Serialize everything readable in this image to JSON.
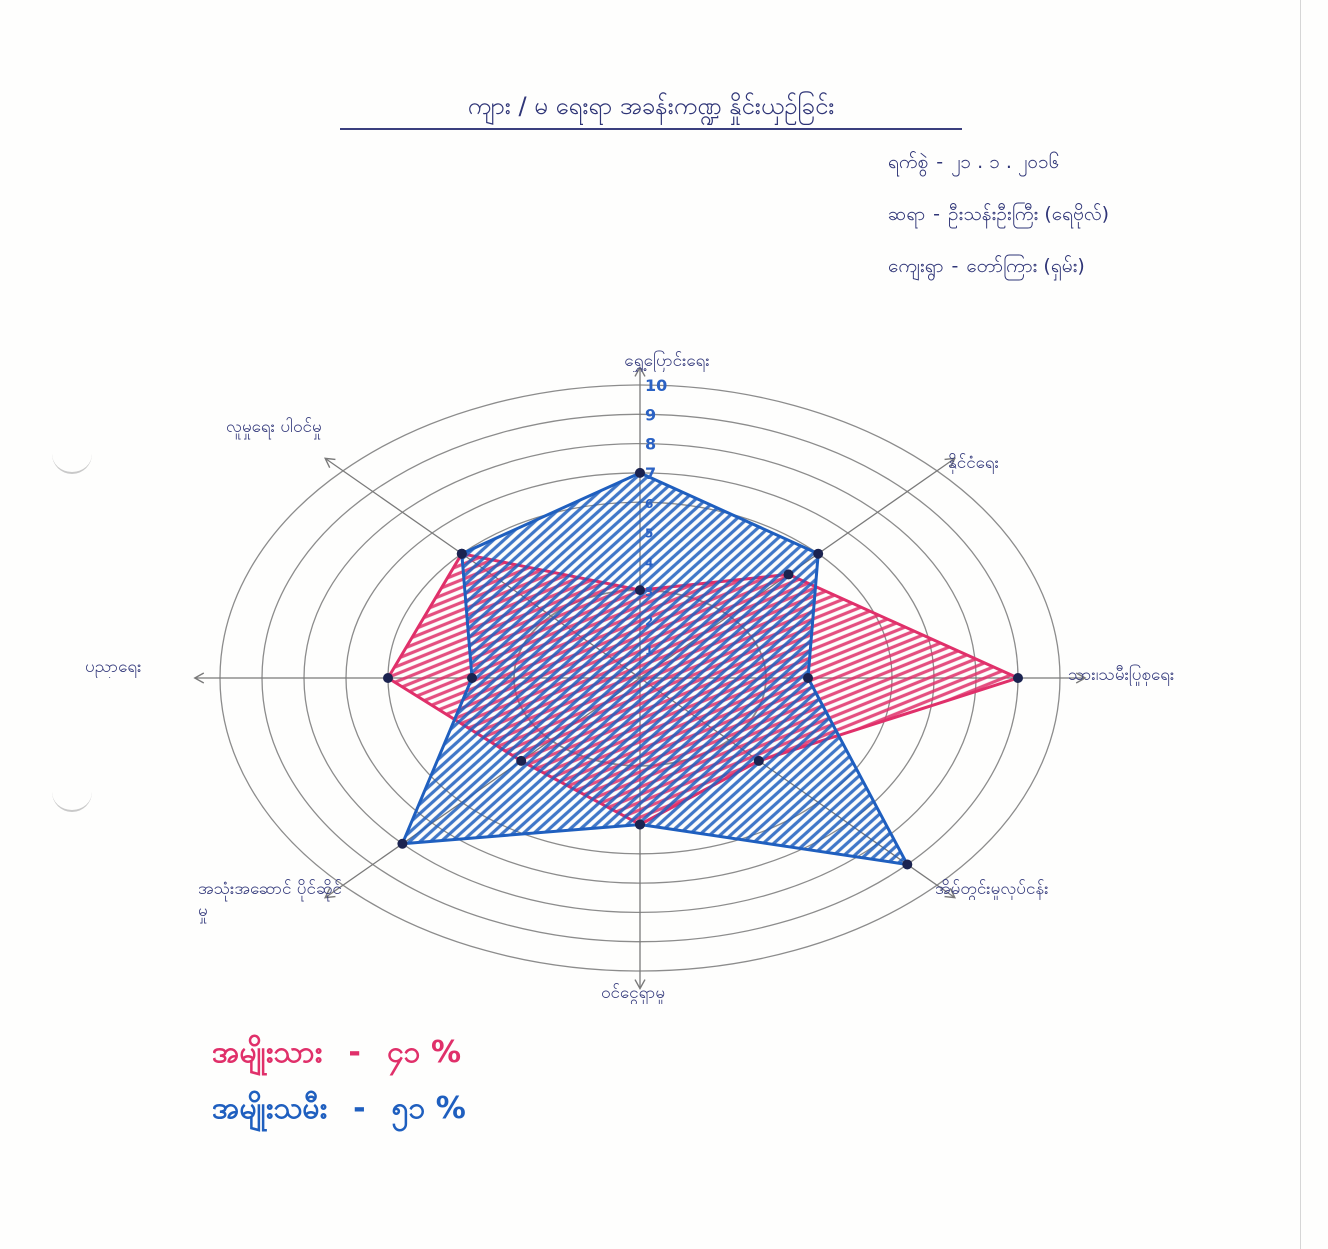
{
  "info": [
    {
      "label": "ရက်စွဲ",
      "separator": "-",
      "value": "၂၁ . ၁ . ၂၀၁၆"
    },
    {
      "label": "ဆရာ",
      "separator": "-",
      "value": "ဦးသန်းဦးကြီး (ရေဗိုလ်)"
    },
    {
      "label": "ကျေးရွာ",
      "separator": "-",
      "value": "တော်ကြား (ရှမ်း)"
    }
  ],
  "legend": [
    {
      "label": "အမျိုးသား",
      "separator": "-",
      "value": "၄၁ %",
      "color": "#e0306a"
    },
    {
      "label": "အမျိုးသမီး",
      "separator": "-",
      "value": "၅၁ %",
      "color": "#1f5fbf"
    }
  ],
  "colors": {
    "ink": "#2f3577",
    "grid": "#8c8c8c",
    "vertex": "#1b2350",
    "tick": "#2b62c4"
  },
  "chart_data": {
    "type": "radar",
    "title": "ကျား / မ ရေးရာ အခန်းကဏ္ဍ နှိုင်းယှဉ်ခြင်း",
    "categories": [
      "ရွှေ့ပြောင်းရေး",
      "နိုင်ငံရေး",
      "သား၊သမီးပြုစုရေး",
      "အိမ်တွင်းမှုလုပ်ငန်း",
      "ဝင်ငွေရှာမှု",
      "အသုံးအဆောင် ပိုင်ဆိုင်မှု",
      "ပညာရေး",
      "လူမှုရေး ပါဝင်မှု"
    ],
    "series": [
      {
        "name": "အမျိုးသား",
        "color": "#e0306a",
        "values": [
          3,
          5,
          9,
          4,
          5,
          4,
          6,
          6
        ]
      },
      {
        "name": "အမျိုးသမီး",
        "color": "#1f5fbf",
        "values": [
          7,
          6,
          4,
          9,
          5,
          8,
          4,
          6
        ]
      }
    ],
    "rlim": [
      0,
      10
    ],
    "ticks": [
      "1",
      "2",
      "3",
      "4",
      "5",
      "6",
      "7",
      "8",
      "9",
      "10"
    ],
    "rings": [
      3,
      6,
      7,
      8,
      9,
      10
    ],
    "grid": true
  }
}
